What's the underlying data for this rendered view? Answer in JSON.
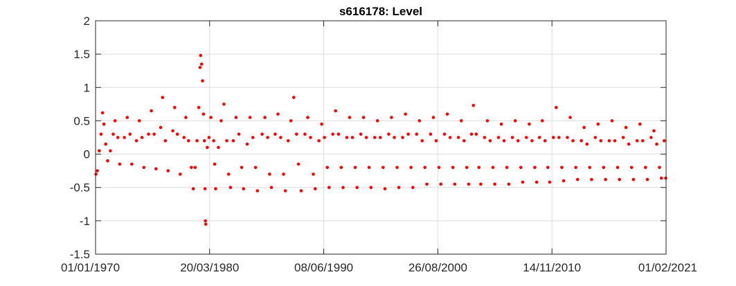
{
  "chart_data": {
    "type": "scatter",
    "title": "s616178: Level",
    "xlabel": "",
    "ylabel": "",
    "xlim": [
      "1970-01-01",
      "2021-02-01"
    ],
    "ylim": [
      -1.5,
      2
    ],
    "x_ticks": [
      "01/01/1970",
      "20/03/1980",
      "08/06/1990",
      "26/08/2000",
      "14/11/2010",
      "01/02/2021"
    ],
    "y_ticks": [
      "2",
      "1.5",
      "1",
      "0.5",
      "0",
      "-0.5",
      "-1",
      "-1.5"
    ],
    "grid": true,
    "marker_color": "#ff0000",
    "series": [
      {
        "points": [
          [
            "1970-01-15",
            -0.3
          ],
          [
            "1970-03-01",
            -0.25
          ],
          [
            "1970-05-01",
            0.05
          ],
          [
            "1970-07-01",
            0.3
          ],
          [
            "1970-08-20",
            0.62
          ],
          [
            "1970-10-01",
            0.45
          ],
          [
            "1970-12-01",
            0.15
          ],
          [
            "1971-02-01",
            -0.1
          ],
          [
            "1971-05-01",
            0.05
          ],
          [
            "1971-08-01",
            0.3
          ],
          [
            "1971-10-01",
            0.5
          ],
          [
            "1972-01-01",
            0.25
          ],
          [
            "1972-03-01",
            -0.15
          ],
          [
            "1972-08-01",
            0.25
          ],
          [
            "1972-11-01",
            0.55
          ],
          [
            "1973-02-01",
            0.3
          ],
          [
            "1973-04-01",
            -0.15
          ],
          [
            "1973-09-01",
            0.2
          ],
          [
            "1973-12-01",
            0.5
          ],
          [
            "1974-03-01",
            0.25
          ],
          [
            "1974-05-01",
            -0.2
          ],
          [
            "1974-10-01",
            0.3
          ],
          [
            "1975-01-01",
            0.65
          ],
          [
            "1975-04-01",
            0.3
          ],
          [
            "1975-06-01",
            -0.22
          ],
          [
            "1975-11-01",
            0.4
          ],
          [
            "1976-01-01",
            0.85
          ],
          [
            "1976-04-01",
            0.2
          ],
          [
            "1976-07-01",
            -0.25
          ],
          [
            "1976-12-01",
            0.35
          ],
          [
            "1977-02-01",
            0.7
          ],
          [
            "1977-05-01",
            0.3
          ],
          [
            "1977-08-01",
            -0.3
          ],
          [
            "1977-12-01",
            0.25
          ],
          [
            "1978-02-01",
            0.55
          ],
          [
            "1978-05-01",
            0.2
          ],
          [
            "1978-08-01",
            -0.2
          ],
          [
            "1978-10-01",
            -0.52
          ],
          [
            "1978-12-01",
            -0.2
          ],
          [
            "1979-02-01",
            0.2
          ],
          [
            "1979-04-01",
            0.7
          ],
          [
            "1979-05-10",
            1.3
          ],
          [
            "1979-06-01",
            1.48
          ],
          [
            "1979-07-01",
            1.35
          ],
          [
            "1979-08-01",
            1.1
          ],
          [
            "1979-09-01",
            0.6
          ],
          [
            "1979-10-01",
            0.2
          ],
          [
            "1979-10-20",
            -0.52
          ],
          [
            "1979-11-01",
            -1.0
          ],
          [
            "1979-11-15",
            -1.05
          ],
          [
            "1980-01-01",
            0.1
          ],
          [
            "1980-03-01",
            0.25
          ],
          [
            "1980-05-01",
            0.55
          ],
          [
            "1980-08-01",
            0.2
          ],
          [
            "1980-09-01",
            -0.15
          ],
          [
            "1980-10-01",
            -0.52
          ],
          [
            "1981-01-01",
            0.1
          ],
          [
            "1981-04-01",
            0.5
          ],
          [
            "1981-07-01",
            0.75
          ],
          [
            "1981-10-01",
            0.2
          ],
          [
            "1981-12-01",
            -0.3
          ],
          [
            "1982-02-01",
            -0.5
          ],
          [
            "1982-05-01",
            0.2
          ],
          [
            "1982-08-01",
            0.55
          ],
          [
            "1982-11-01",
            0.3
          ],
          [
            "1983-02-01",
            -0.2
          ],
          [
            "1983-04-01",
            -0.52
          ],
          [
            "1983-08-01",
            0.15
          ],
          [
            "1983-11-01",
            0.55
          ],
          [
            "1984-02-01",
            0.25
          ],
          [
            "1984-05-01",
            -0.2
          ],
          [
            "1984-07-01",
            -0.55
          ],
          [
            "1984-12-01",
            0.3
          ],
          [
            "1985-03-01",
            0.55
          ],
          [
            "1985-06-01",
            0.25
          ],
          [
            "1985-08-01",
            -0.3
          ],
          [
            "1985-10-01",
            -0.5
          ],
          [
            "1986-02-01",
            0.3
          ],
          [
            "1986-05-01",
            0.6
          ],
          [
            "1986-08-01",
            0.25
          ],
          [
            "1986-11-01",
            -0.3
          ],
          [
            "1987-01-01",
            -0.55
          ],
          [
            "1987-04-01",
            0.2
          ],
          [
            "1987-07-01",
            0.5
          ],
          [
            "1987-10-01",
            0.85
          ],
          [
            "1988-01-01",
            0.3
          ],
          [
            "1988-03-01",
            -0.15
          ],
          [
            "1988-06-01",
            -0.55
          ],
          [
            "1988-10-01",
            0.3
          ],
          [
            "1989-01-01",
            0.55
          ],
          [
            "1989-04-01",
            0.25
          ],
          [
            "1989-07-01",
            -0.3
          ],
          [
            "1989-09-01",
            -0.52
          ],
          [
            "1990-01-01",
            0.2
          ],
          [
            "1990-04-01",
            0.45
          ],
          [
            "1990-07-01",
            0.25
          ],
          [
            "1990-10-01",
            -0.2
          ],
          [
            "1990-12-01",
            -0.5
          ],
          [
            "1991-04-01",
            0.3
          ],
          [
            "1991-07-01",
            0.65
          ],
          [
            "1991-10-01",
            0.3
          ],
          [
            "1992-01-01",
            -0.2
          ],
          [
            "1992-03-01",
            -0.5
          ],
          [
            "1992-07-01",
            0.25
          ],
          [
            "1992-10-01",
            0.55
          ],
          [
            "1993-01-01",
            0.25
          ],
          [
            "1993-04-01",
            -0.2
          ],
          [
            "1993-06-01",
            -0.5
          ],
          [
            "1993-10-01",
            0.3
          ],
          [
            "1994-01-01",
            0.55
          ],
          [
            "1994-04-01",
            0.25
          ],
          [
            "1994-07-01",
            -0.2
          ],
          [
            "1994-09-01",
            -0.5
          ],
          [
            "1995-01-01",
            0.25
          ],
          [
            "1995-04-01",
            0.5
          ],
          [
            "1995-07-01",
            0.25
          ],
          [
            "1995-10-01",
            -0.2
          ],
          [
            "1995-12-01",
            -0.52
          ],
          [
            "1996-04-01",
            0.3
          ],
          [
            "1996-07-01",
            0.55
          ],
          [
            "1996-10-01",
            0.25
          ],
          [
            "1997-01-01",
            -0.2
          ],
          [
            "1997-03-01",
            -0.5
          ],
          [
            "1997-07-01",
            0.25
          ],
          [
            "1997-10-01",
            0.6
          ],
          [
            "1998-01-01",
            0.3
          ],
          [
            "1998-04-01",
            -0.2
          ],
          [
            "1998-06-01",
            -0.5
          ],
          [
            "1998-10-01",
            0.3
          ],
          [
            "1999-01-01",
            0.5
          ],
          [
            "1999-04-01",
            0.2
          ],
          [
            "1999-07-01",
            -0.2
          ],
          [
            "1999-09-01",
            -0.45
          ],
          [
            "2000-01-01",
            0.3
          ],
          [
            "2000-04-01",
            0.55
          ],
          [
            "2000-07-01",
            0.2
          ],
          [
            "2000-10-01",
            -0.2
          ],
          [
            "2000-12-01",
            -0.45
          ],
          [
            "2001-04-01",
            0.3
          ],
          [
            "2001-07-01",
            0.6
          ],
          [
            "2001-10-01",
            0.25
          ],
          [
            "2002-01-01",
            -0.2
          ],
          [
            "2002-03-01",
            -0.45
          ],
          [
            "2002-07-01",
            0.25
          ],
          [
            "2002-10-01",
            0.5
          ],
          [
            "2003-01-01",
            0.2
          ],
          [
            "2003-04-01",
            -0.2
          ],
          [
            "2003-06-01",
            -0.45
          ],
          [
            "2003-09-01",
            0.3
          ],
          [
            "2003-11-01",
            0.73
          ],
          [
            "2004-02-01",
            0.3
          ],
          [
            "2004-05-01",
            -0.2
          ],
          [
            "2004-07-01",
            -0.45
          ],
          [
            "2004-11-01",
            0.25
          ],
          [
            "2005-02-01",
            0.5
          ],
          [
            "2005-05-01",
            0.2
          ],
          [
            "2005-08-01",
            -0.2
          ],
          [
            "2005-10-01",
            -0.45
          ],
          [
            "2006-02-01",
            0.25
          ],
          [
            "2006-05-01",
            0.45
          ],
          [
            "2006-08-01",
            0.2
          ],
          [
            "2006-11-01",
            -0.2
          ],
          [
            "2007-01-01",
            -0.45
          ],
          [
            "2007-05-01",
            0.25
          ],
          [
            "2007-08-01",
            0.5
          ],
          [
            "2007-11-01",
            0.2
          ],
          [
            "2008-02-01",
            -0.2
          ],
          [
            "2008-04-01",
            -0.42
          ],
          [
            "2008-08-01",
            0.25
          ],
          [
            "2008-11-01",
            0.45
          ],
          [
            "2009-02-01",
            0.2
          ],
          [
            "2009-05-01",
            -0.2
          ],
          [
            "2009-07-01",
            -0.42
          ],
          [
            "2009-10-01",
            0.25
          ],
          [
            "2010-01-01",
            0.5
          ],
          [
            "2010-04-01",
            0.2
          ],
          [
            "2010-07-01",
            -0.2
          ],
          [
            "2010-09-01",
            -0.42
          ],
          [
            "2011-01-01",
            0.25
          ],
          [
            "2011-04-01",
            0.7
          ],
          [
            "2011-07-01",
            0.25
          ],
          [
            "2011-10-01",
            -0.2
          ],
          [
            "2011-12-01",
            -0.4
          ],
          [
            "2012-04-01",
            0.25
          ],
          [
            "2012-07-01",
            0.55
          ],
          [
            "2012-10-01",
            0.2
          ],
          [
            "2013-01-01",
            -0.2
          ],
          [
            "2013-03-01",
            -0.38
          ],
          [
            "2013-07-01",
            0.2
          ],
          [
            "2013-10-01",
            0.4
          ],
          [
            "2014-01-01",
            0.15
          ],
          [
            "2014-04-01",
            -0.2
          ],
          [
            "2014-06-01",
            -0.38
          ],
          [
            "2014-10-01",
            0.25
          ],
          [
            "2015-01-01",
            0.45
          ],
          [
            "2015-04-01",
            0.2
          ],
          [
            "2015-07-01",
            -0.2
          ],
          [
            "2015-09-01",
            -0.38
          ],
          [
            "2016-01-01",
            0.2
          ],
          [
            "2016-04-01",
            0.5
          ],
          [
            "2016-07-01",
            0.2
          ],
          [
            "2016-10-01",
            -0.2
          ],
          [
            "2016-12-01",
            -0.38
          ],
          [
            "2017-04-01",
            0.25
          ],
          [
            "2017-07-01",
            0.4
          ],
          [
            "2017-10-01",
            0.15
          ],
          [
            "2018-01-01",
            -0.2
          ],
          [
            "2018-03-01",
            -0.38
          ],
          [
            "2018-07-01",
            0.2
          ],
          [
            "2018-10-01",
            0.45
          ],
          [
            "2019-01-01",
            0.2
          ],
          [
            "2019-04-01",
            -0.2
          ],
          [
            "2019-06-01",
            -0.38
          ],
          [
            "2019-10-01",
            0.25
          ],
          [
            "2020-01-01",
            0.35
          ],
          [
            "2020-04-01",
            0.15
          ],
          [
            "2020-07-01",
            -0.2
          ],
          [
            "2020-09-01",
            -0.36
          ],
          [
            "2020-12-01",
            0.2
          ],
          [
            "2021-01-20",
            -0.36
          ]
        ]
      }
    ]
  }
}
